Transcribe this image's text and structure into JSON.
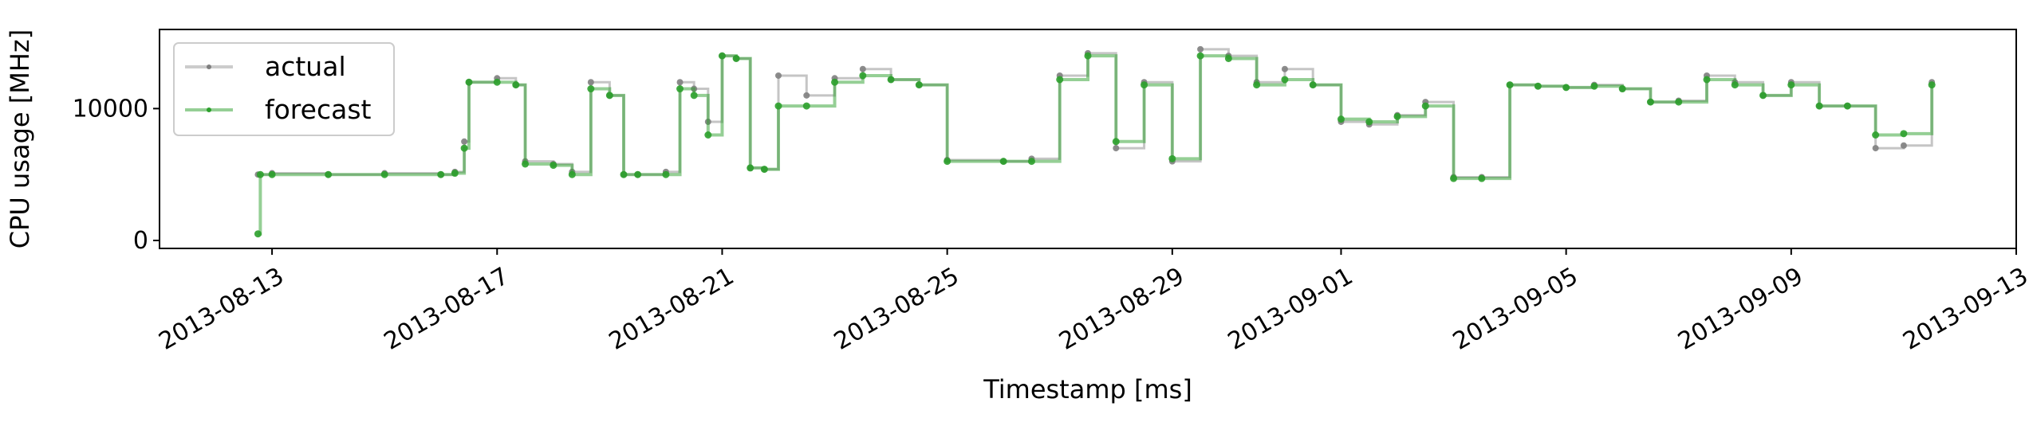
{
  "chart_data": {
    "type": "line",
    "xlabel": "Timestamp [ms]",
    "ylabel": "CPU usage [MHz]",
    "xlim": [
      "2013-08-11",
      "2013-09-13"
    ],
    "ylim": [
      0,
      16000
    ],
    "x_ticks": [
      "2013-08-13",
      "2013-08-17",
      "2013-08-21",
      "2013-08-25",
      "2013-08-29",
      "2013-09-01",
      "2013-09-05",
      "2013-09-09",
      "2013-09-13"
    ],
    "y_ticks": [
      0,
      10000
    ],
    "y_tick_labels": [
      "0",
      "10000"
    ],
    "grid": false,
    "legend_position": "upper-left",
    "colors": {
      "actual": "#7f7f7f",
      "forecast": "#2ca02c"
    },
    "series": [
      {
        "name": "actual",
        "x": [
          "2013-08-12 18:00",
          "2013-08-13 00:00",
          "2013-08-14 00:00",
          "2013-08-15 00:00",
          "2013-08-16 00:00",
          "2013-08-16 06:00",
          "2013-08-16 10:00",
          "2013-08-16 12:00",
          "2013-08-17 00:00",
          "2013-08-17 08:00",
          "2013-08-17 12:00",
          "2013-08-18 00:00",
          "2013-08-18 08:00",
          "2013-08-18 16:00",
          "2013-08-19 00:00",
          "2013-08-19 06:00",
          "2013-08-19 12:00",
          "2013-08-20 00:00",
          "2013-08-20 06:00",
          "2013-08-20 12:00",
          "2013-08-20 18:00",
          "2013-08-21 00:00",
          "2013-08-21 06:00",
          "2013-08-21 12:00",
          "2013-08-21 18:00",
          "2013-08-22 00:00",
          "2013-08-22 12:00",
          "2013-08-23 00:00",
          "2013-08-23 12:00",
          "2013-08-24 00:00",
          "2013-08-24 12:00",
          "2013-08-25 00:00",
          "2013-08-26 00:00",
          "2013-08-26 12:00",
          "2013-08-27 00:00",
          "2013-08-27 12:00",
          "2013-08-28 00:00",
          "2013-08-28 12:00",
          "2013-08-29 00:00",
          "2013-08-29 12:00",
          "2013-08-30 00:00",
          "2013-08-30 12:00",
          "2013-08-31 00:00",
          "2013-08-31 12:00",
          "2013-09-01 00:00",
          "2013-09-01 12:00",
          "2013-09-02 00:00",
          "2013-09-02 12:00",
          "2013-09-03 00:00",
          "2013-09-03 12:00",
          "2013-09-04 00:00",
          "2013-09-04 12:00",
          "2013-09-05 00:00",
          "2013-09-05 12:00",
          "2013-09-06 00:00",
          "2013-09-06 12:00",
          "2013-09-07 00:00",
          "2013-09-07 12:00",
          "2013-09-08 00:00",
          "2013-09-08 12:00",
          "2013-09-09 00:00",
          "2013-09-09 12:00",
          "2013-09-10 00:00",
          "2013-09-10 12:00",
          "2013-09-11 00:00",
          "2013-09-11 12:00"
        ],
        "values": [
          5000,
          5100,
          5000,
          5100,
          5000,
          5200,
          7500,
          12000,
          12300,
          11800,
          6000,
          5800,
          5200,
          12000,
          11000,
          5000,
          5000,
          5200,
          12000,
          11500,
          9000,
          14000,
          13800,
          5500,
          5400,
          12500,
          11000,
          12300,
          13000,
          12200,
          11800,
          6100,
          6000,
          6200,
          12500,
          14200,
          7000,
          12000,
          6000,
          14500,
          14000,
          12000,
          13000,
          11800,
          9000,
          8800,
          9500,
          10500,
          4800,
          4800,
          11800,
          11700,
          11600,
          11800,
          11500,
          10500,
          10600,
          12500,
          12000,
          11000,
          12000,
          10200,
          10200,
          7000,
          7200,
          12000
        ]
      },
      {
        "name": "forecast",
        "x": [
          "2013-08-12 18:00",
          "2013-08-12 19:00",
          "2013-08-13 00:00",
          "2013-08-14 00:00",
          "2013-08-15 00:00",
          "2013-08-16 00:00",
          "2013-08-16 06:00",
          "2013-08-16 10:00",
          "2013-08-16 12:00",
          "2013-08-17 00:00",
          "2013-08-17 08:00",
          "2013-08-17 12:00",
          "2013-08-18 00:00",
          "2013-08-18 08:00",
          "2013-08-18 16:00",
          "2013-08-19 00:00",
          "2013-08-19 06:00",
          "2013-08-19 12:00",
          "2013-08-20 00:00",
          "2013-08-20 06:00",
          "2013-08-20 12:00",
          "2013-08-20 18:00",
          "2013-08-21 00:00",
          "2013-08-21 06:00",
          "2013-08-21 12:00",
          "2013-08-21 18:00",
          "2013-08-22 00:00",
          "2013-08-22 12:00",
          "2013-08-23 00:00",
          "2013-08-23 12:00",
          "2013-08-24 00:00",
          "2013-08-24 12:00",
          "2013-08-25 00:00",
          "2013-08-26 00:00",
          "2013-08-26 12:00",
          "2013-08-27 00:00",
          "2013-08-27 12:00",
          "2013-08-28 00:00",
          "2013-08-28 12:00",
          "2013-08-29 00:00",
          "2013-08-29 12:00",
          "2013-08-30 00:00",
          "2013-08-30 12:00",
          "2013-08-31 00:00",
          "2013-08-31 12:00",
          "2013-09-01 00:00",
          "2013-09-01 12:00",
          "2013-09-02 00:00",
          "2013-09-02 12:00",
          "2013-09-03 00:00",
          "2013-09-03 12:00",
          "2013-09-04 00:00",
          "2013-09-04 12:00",
          "2013-09-05 00:00",
          "2013-09-05 12:00",
          "2013-09-06 00:00",
          "2013-09-06 12:00",
          "2013-09-07 00:00",
          "2013-09-07 12:00",
          "2013-09-08 00:00",
          "2013-09-08 12:00",
          "2013-09-09 00:00",
          "2013-09-09 12:00",
          "2013-09-10 00:00",
          "2013-09-10 12:00",
          "2013-09-11 00:00",
          "2013-09-11 12:00"
        ],
        "values": [
          500,
          5000,
          5000,
          5000,
          5000,
          5000,
          5100,
          7000,
          12000,
          12000,
          11800,
          5800,
          5700,
          5000,
          11500,
          11000,
          5000,
          5000,
          5000,
          11500,
          11000,
          8000,
          14000,
          13800,
          5500,
          5400,
          10200,
          10200,
          12000,
          12500,
          12200,
          11800,
          6000,
          6000,
          6000,
          12200,
          14000,
          7500,
          11800,
          6200,
          14000,
          13800,
          11800,
          12200,
          11800,
          9200,
          9000,
          9400,
          10200,
          4700,
          4700,
          11800,
          11700,
          11600,
          11700,
          11500,
          10500,
          10500,
          12200,
          11800,
          11000,
          11800,
          10200,
          10200,
          8000,
          8100,
          11800
        ]
      }
    ]
  }
}
